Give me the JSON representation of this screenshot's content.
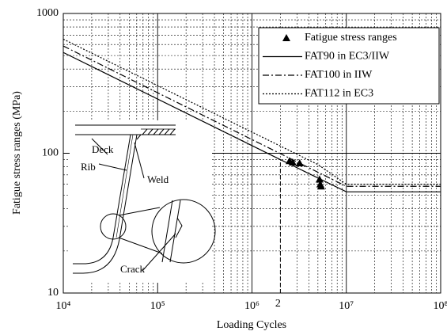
{
  "chart_data": {
    "type": "line",
    "xlabel": "Loading Cycles",
    "ylabel": "Fatigue stress ranges (MPa)",
    "log_x": true,
    "log_y": true,
    "grid": true,
    "minor_grid": true,
    "xlim": [
      10000,
      100000000
    ],
    "ylim": [
      10,
      1000
    ],
    "xticks": [
      {
        "value": 10000,
        "label": "10⁴"
      },
      {
        "value": 100000,
        "label": "10⁵"
      },
      {
        "value": 1000000,
        "label": "10⁶"
      },
      {
        "value": 10000000,
        "label": "10⁷"
      },
      {
        "value": 100000000,
        "label": "10⁸"
      }
    ],
    "yticks": [
      10,
      100,
      1000
    ],
    "legend": "upper right",
    "series": [
      {
        "name": "Fatigue stress ranges",
        "type": "scatter",
        "marker": "triangle",
        "color": "#000000",
        "x": [
          2500000,
          2700000,
          3200000,
          5200000,
          5300000,
          5400000
        ],
        "values": [
          88,
          86,
          85,
          65,
          60,
          58
        ]
      },
      {
        "name": "FAT90 in EC3/IIW",
        "type": "line",
        "line_style": "solid",
        "color": "#000000",
        "x": [
          10000,
          2000000,
          10000000,
          100000000
        ],
        "values": [
          526,
          90,
          53,
          53
        ]
      },
      {
        "name": "FAT100 in IIW",
        "type": "line",
        "line_style": "dashdot",
        "color": "#000000",
        "x": [
          10000,
          10000000,
          100000000
        ],
        "values": [
          585,
          58,
          58
        ]
      },
      {
        "name": "FAT112 in EC3",
        "type": "line",
        "line_style": "dotted",
        "color": "#000000",
        "x": [
          10000,
          5000000,
          10000000,
          100000000
        ],
        "values": [
          655,
          83,
          60,
          60
        ]
      }
    ],
    "annotation": {
      "text": "2",
      "x": 2000000
    },
    "inset": {
      "labels": [
        "Deck",
        "Rib",
        "Weld",
        "Crack"
      ]
    }
  }
}
